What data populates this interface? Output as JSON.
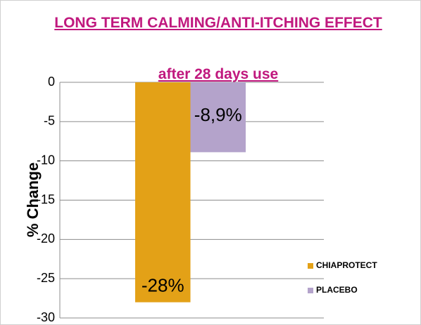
{
  "chart_data": {
    "type": "bar",
    "title": "LONG TERM CALMING/ANTI-ITCHING EFFECT",
    "subtitle": "after 28 days use",
    "y_label": "% Change",
    "categories": [
      null
    ],
    "series": [
      {
        "name": "CHIAPROTECT",
        "color": "#e3a117",
        "values": [
          -28
        ],
        "value_labels": [
          "-28%"
        ]
      },
      {
        "name": "PLACEBO",
        "color": "#b4a3cb",
        "values": [
          -8.9
        ],
        "value_labels": [
          "-8,9%"
        ]
      }
    ],
    "ylim": [
      -30,
      0
    ],
    "yticks": [
      0,
      -5,
      -10,
      -15,
      -20,
      -25,
      -30
    ],
    "grid": true,
    "legend": "lower right"
  }
}
